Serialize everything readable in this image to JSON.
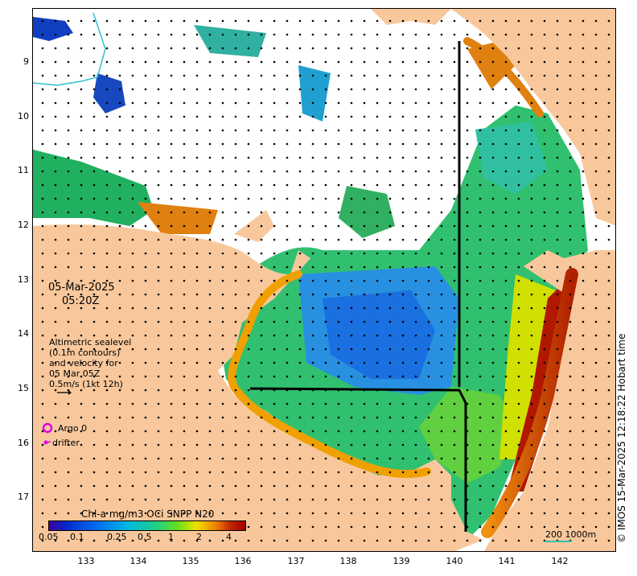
{
  "map": {
    "lat_ticks": [
      "9",
      "10",
      "11",
      "12",
      "13",
      "14",
      "15",
      "16",
      "17"
    ],
    "lon_ticks": [
      "133",
      "134",
      "135",
      "136",
      "137",
      "138",
      "139",
      "140",
      "141",
      "142"
    ],
    "date": "05-Mar-2025",
    "time": "05:20Z",
    "altimetry_lines": [
      "Altimetric sealevel",
      "(0.1m contours)",
      "and velocity for",
      "05 Mar 05Z",
      "0.5m/s (1kt 12h)"
    ],
    "argo_label": "Argo 0",
    "drifter_label": "drifter",
    "scale_label": "200  1000m",
    "credit": "© IMOS 15-Mar-2025 12:18:22 Hobart time",
    "colors": {
      "land": "#f8c89c",
      "ocean_nodata": "#ffffff",
      "argo": "#e000e0",
      "drifter": "#e000e0"
    }
  },
  "colorbar": {
    "title": "Chl-a mg/m3 OCi SNPP N20",
    "ticks": [
      "0.05",
      "0.1",
      "0.25",
      "0.5",
      "1",
      "2",
      "4"
    ]
  }
}
